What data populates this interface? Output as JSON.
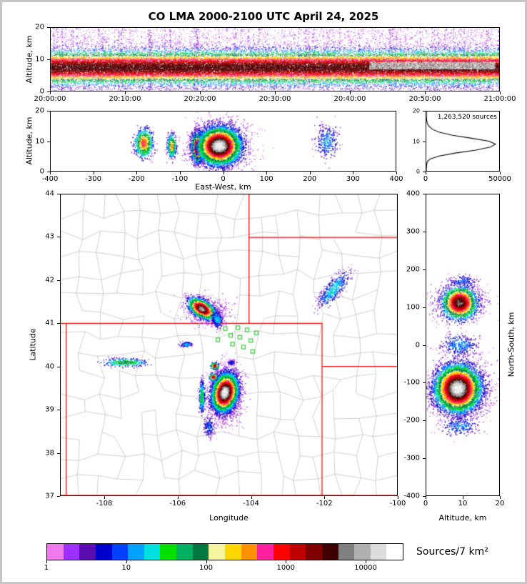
{
  "title": "CO LMA 2000-2100 UTC April 24, 2025",
  "panels": {
    "time_height": {
      "ylabel": "Altitude, km",
      "yticks": [
        "20",
        "10",
        "0"
      ],
      "xticks": [
        "20:00:00",
        "20:10:00",
        "20:20:00",
        "20:30:00",
        "20:40:00",
        "20:50:00",
        "21:00:00"
      ]
    },
    "east_west": {
      "ylabel": "Altitude, km",
      "xlabel": "East-West, km",
      "yticks": [
        "20",
        "10",
        "0"
      ],
      "xticks": [
        "-400",
        "-300",
        "-200",
        "-100",
        "0",
        "100",
        "200",
        "300",
        "400"
      ]
    },
    "histogram": {
      "yticks": [
        "20",
        "10",
        "0"
      ],
      "xticks": [
        "0",
        "50000"
      ]
    },
    "map": {
      "ylabel": "Latitude",
      "xlabel": "Longitude",
      "yticks": [
        "44",
        "43",
        "42",
        "41",
        "40",
        "39",
        "38",
        "37"
      ],
      "xticks": [
        "-108",
        "-106",
        "-104",
        "-102",
        "-100"
      ]
    },
    "north_south": {
      "ylabel_right": "North-South, km",
      "xlabel": "Altitude, km",
      "yticks": [
        "400",
        "300",
        "200",
        "100",
        "0",
        "-100",
        "-200",
        "-300",
        "-400"
      ],
      "xticks": [
        "0",
        "10",
        "20"
      ]
    },
    "colorbar": {
      "label": "Sources/7 km²",
      "ticks": [
        "1",
        "10",
        "100",
        "1000",
        "10000"
      ],
      "colors": [
        "#EE7AEE",
        "#9B30FF",
        "#5B0EB0",
        "#0000CD",
        "#0040FF",
        "#00A0FF",
        "#00E0E0",
        "#00E000",
        "#00B060",
        "#007840",
        "#F5F5A0",
        "#FFD700",
        "#FF9000",
        "#FF20A0",
        "#FF0000",
        "#C00000",
        "#800000",
        "#400000",
        "#808080",
        "#B0B0B0",
        "#DCDCDC",
        "#FFFFFF"
      ]
    }
  },
  "chart_data": [
    {
      "panel": "time_height",
      "type": "time_height_density",
      "title": "CO LMA 2000-2100 UTC April 24, 2025",
      "ylabel": "Altitude, km",
      "time_start": "20:00:00",
      "time_end": "21:00:00",
      "x_range": [
        0,
        3600
      ],
      "y_range": [
        0,
        20
      ],
      "band": {
        "center_km": 7.5,
        "sigma_km": 2.4
      },
      "white_core": {
        "t_frac": [
          0.71,
          0.99
        ],
        "alt_km": [
          7.0,
          9.3
        ]
      },
      "band_n": 42000,
      "sparse_n": 5000,
      "core_n": 3500,
      "streaks": 130
    },
    {
      "panel": "east_west",
      "type": "cluster_density",
      "xlabel": "East-West, km",
      "ylabel": "Altitude, km",
      "x_range": [
        -400,
        400
      ],
      "y_range": [
        0,
        20
      ],
      "clusters": [
        {
          "x": -10,
          "y": 8.5,
          "sx": 35,
          "sy": 4.5,
          "n": 1300,
          "peak": 3
        },
        {
          "x": -185,
          "y": 9.5,
          "sx": 10,
          "sy": 2.3,
          "n": 900,
          "peak": 13
        },
        {
          "x": -120,
          "y": 8.5,
          "sx": 5,
          "sy": 1.9,
          "n": 450,
          "peak": 12
        },
        {
          "x": -60,
          "y": 8.0,
          "sx": 7,
          "sy": 2.3,
          "n": 2200,
          "peak": 17
        },
        {
          "x": -10,
          "y": 8.5,
          "sx": 22,
          "sy": 2.8,
          "n": 9000,
          "peak": 21
        },
        {
          "x": 240,
          "y": 10.0,
          "sx": 14,
          "sy": 2.8,
          "n": 300,
          "peak": 5
        }
      ]
    },
    {
      "panel": "histogram",
      "type": "altitude_profile",
      "annotation": "1,263,520 sources",
      "x_range": [
        0,
        50000
      ],
      "y_range": [
        0,
        20
      ],
      "profile_alt_km": [
        0,
        1,
        2,
        3,
        4,
        5,
        6,
        7,
        8,
        9,
        10,
        11,
        12,
        13,
        14,
        15,
        16,
        17,
        18,
        20
      ],
      "profile_sources": [
        0,
        50,
        200,
        600,
        2500,
        9000,
        20000,
        34000,
        44000,
        47500,
        43000,
        31000,
        18000,
        9000,
        4200,
        1800,
        700,
        250,
        80,
        0
      ]
    },
    {
      "panel": "map",
      "type": "cluster_density",
      "xlabel": "Longitude",
      "ylabel": "Latitude",
      "x_range": [
        -109.2,
        -100.0
      ],
      "y_range": [
        37.0,
        44.0
      ],
      "border_color": "#FF0000",
      "station_color": "#33CC33",
      "county_color": "#C3C3C3",
      "state_borders": [
        [
          [
            -109.05,
            37.0
          ],
          [
            -109.05,
            41.0
          ],
          [
            -102.05,
            41.0
          ],
          [
            -102.05,
            37.0
          ],
          [
            -109.05,
            37.0
          ]
        ],
        [
          [
            -109.2,
            41.0
          ],
          [
            -109.05,
            41.0
          ]
        ],
        [
          [
            -109.2,
            37.0
          ],
          [
            -109.05,
            37.0
          ]
        ],
        [
          [
            -102.05,
            37.0
          ],
          [
            -100.0,
            37.0
          ]
        ],
        [
          [
            -104.05,
            41.0
          ],
          [
            -104.05,
            44.0
          ]
        ],
        [
          [
            -104.05,
            43.0
          ],
          [
            -100.0,
            43.0
          ]
        ],
        [
          [
            -102.05,
            40.0
          ],
          [
            -100.0,
            40.0
          ]
        ]
      ],
      "stations": [
        [
          -104.9,
          40.62
        ],
        [
          -104.7,
          40.88
        ],
        [
          -104.55,
          40.72
        ],
        [
          -104.5,
          40.52
        ],
        [
          -104.35,
          40.9
        ],
        [
          -104.3,
          40.68
        ],
        [
          -104.2,
          40.45
        ],
        [
          -104.1,
          40.85
        ],
        [
          -104.0,
          40.6
        ],
        [
          -103.95,
          40.35
        ],
        [
          -103.85,
          40.78
        ]
      ],
      "clusters": [
        {
          "x": -104.7,
          "y": 39.35,
          "sx": 0.2,
          "sy": 0.3,
          "n": 1600,
          "peak": 3
        },
        {
          "x": -105.2,
          "y": 41.3,
          "sx": 0.3,
          "sy": 0.15,
          "n": 500,
          "peak": 2
        },
        {
          "x": -104.72,
          "y": 39.4,
          "sx": 0.15,
          "sy": 0.2,
          "n": 9000,
          "peak": 21,
          "angle": -20
        },
        {
          "x": -105.35,
          "y": 41.35,
          "sx": 0.18,
          "sy": 0.09,
          "n": 2500,
          "peak": 19,
          "angle": -25
        },
        {
          "x": -104.93,
          "y": 41.1,
          "sx": 0.07,
          "sy": 0.1,
          "n": 300,
          "peak": 6,
          "angle": 30
        },
        {
          "x": -101.75,
          "y": 41.8,
          "sx": 0.28,
          "sy": 0.1,
          "n": 450,
          "peak": 6,
          "angle": 45
        },
        {
          "x": -107.45,
          "y": 40.1,
          "sx": 0.3,
          "sy": 0.05,
          "n": 300,
          "peak": 9
        },
        {
          "x": -105.78,
          "y": 40.52,
          "sx": 0.07,
          "sy": 0.03,
          "n": 120,
          "peak": 6
        },
        {
          "x": -105.0,
          "y": 40.02,
          "sx": 0.05,
          "sy": 0.035,
          "n": 220,
          "peak": 16
        },
        {
          "x": -104.55,
          "y": 40.1,
          "sx": 0.05,
          "sy": 0.03,
          "n": 90,
          "peak": 4
        },
        {
          "x": -105.35,
          "y": 39.3,
          "sx": 0.04,
          "sy": 0.18,
          "n": 350,
          "peak": 8
        },
        {
          "x": -105.04,
          "y": 39.76,
          "sx": 0.05,
          "sy": 0.04,
          "n": 250,
          "peak": 16
        },
        {
          "x": -105.15,
          "y": 38.6,
          "sx": 0.08,
          "sy": 0.12,
          "n": 200,
          "peak": 4
        }
      ]
    },
    {
      "panel": "north_south",
      "type": "cluster_density",
      "xlabel": "Altitude, km",
      "ylabel": "North-South, km",
      "x_range": [
        0,
        20
      ],
      "y_range": [
        -400,
        400
      ],
      "clusters": [
        {
          "x": 9.0,
          "y": -115,
          "sx": 4.5,
          "sy": 40,
          "n": 1400,
          "peak": 3
        },
        {
          "x": 9.0,
          "y": 113,
          "sx": 4.0,
          "sy": 25,
          "n": 600,
          "peak": 3
        },
        {
          "x": 9.0,
          "y": 113,
          "sx": 2.2,
          "sy": 20,
          "n": 2500,
          "peak": 18
        },
        {
          "x": 8.5,
          "y": -115,
          "sx": 2.8,
          "sy": 28,
          "n": 9000,
          "peak": 21
        },
        {
          "x": 9.0,
          "y": 0,
          "sx": 2.5,
          "sy": 15,
          "n": 350,
          "peak": 5
        },
        {
          "x": 9.0,
          "y": -215,
          "sx": 2.5,
          "sy": 12,
          "n": 250,
          "peak": 5
        },
        {
          "x": 10.0,
          "y": 170,
          "sx": 2.0,
          "sy": 8,
          "n": 150,
          "peak": 4
        }
      ]
    }
  ]
}
